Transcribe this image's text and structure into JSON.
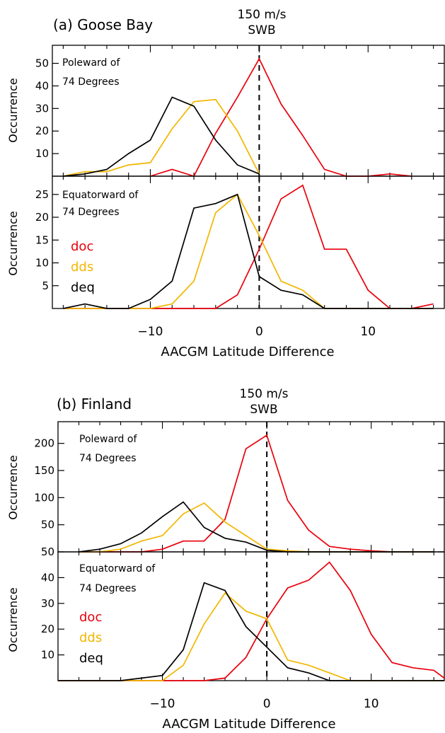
{
  "colors": {
    "doc": "#e8000b",
    "dds": "#f2b600",
    "deq": "#000000",
    "axis": "#000000"
  },
  "chart_data": [
    {
      "type": "line",
      "figure": "a",
      "title": "(a) Goose Bay",
      "header": [
        "150 m/s",
        "SWB"
      ],
      "xlabel": "AACGM Latitude Difference",
      "xticks": [
        "−10",
        "0",
        "10"
      ],
      "xlim": [
        -19,
        17
      ],
      "panels": [
        {
          "note": [
            "Poleward of",
            "74 Degrees"
          ],
          "ylabel": "Occurrence",
          "ylim": [
            0,
            58
          ],
          "yticks": [
            10,
            20,
            30,
            40,
            50
          ],
          "x": [
            -18,
            -16,
            -14,
            -12,
            -10,
            -8,
            -6,
            -4,
            -2,
            0,
            2,
            4,
            6,
            8,
            10,
            12,
            14,
            16
          ],
          "series": [
            {
              "name": "doc",
              "values": [
                null,
                null,
                null,
                null,
                0,
                3,
                0,
                19,
                35,
                52,
                32,
                18,
                3,
                0,
                0,
                1,
                0,
                null
              ]
            },
            {
              "name": "dds",
              "values": [
                0,
                2,
                2,
                5,
                6,
                21,
                33,
                34,
                20,
                1,
                null,
                null,
                null,
                null,
                null,
                null,
                null,
                null
              ]
            },
            {
              "name": "deq",
              "values": [
                0,
                1,
                3,
                10,
                16,
                35,
                31,
                16,
                5,
                1,
                null,
                null,
                null,
                null,
                null,
                null,
                null,
                null
              ]
            }
          ]
        },
        {
          "note": [
            "Equatorward of",
            "74 Degrees"
          ],
          "ylabel": "Occurrence",
          "ylim": [
            0,
            29
          ],
          "yticks": [
            5,
            10,
            15,
            20,
            25
          ],
          "legend": [
            "doc",
            "dds",
            "deq"
          ],
          "x": [
            -18,
            -16,
            -14,
            -12,
            -10,
            -8,
            -6,
            -4,
            -2,
            0,
            2,
            4,
            6,
            8,
            10,
            12,
            14,
            16,
            18
          ],
          "series": [
            {
              "name": "doc",
              "values": [
                0,
                0,
                0,
                0,
                0,
                0,
                0,
                0,
                3,
                13,
                24,
                27,
                13,
                13,
                4,
                0,
                0,
                1,
                0
              ]
            },
            {
              "name": "dds",
              "values": [
                0,
                0,
                0,
                0,
                0,
                1,
                6,
                21,
                25,
                16,
                6,
                4,
                0,
                0,
                0,
                0,
                0,
                0,
                0
              ]
            },
            {
              "name": "deq",
              "values": [
                0,
                1,
                0,
                0,
                2,
                6,
                22,
                23,
                25,
                7,
                4,
                3,
                0,
                0,
                0,
                0,
                0,
                0,
                0
              ]
            }
          ]
        }
      ]
    },
    {
      "type": "line",
      "figure": "b",
      "title": "(b) Finland",
      "header": [
        "150 m/s",
        "SWB"
      ],
      "xlabel": "AACGM Latitude Difference",
      "xticks": [
        "−10",
        "0",
        "10"
      ],
      "xlim": [
        -20,
        17
      ],
      "panels": [
        {
          "note": [
            "Poleward of",
            "74 Degrees"
          ],
          "ylabel": "Occurrence",
          "ylim": [
            0,
            240
          ],
          "yticks": [
            50,
            100,
            150,
            200
          ],
          "x": [
            -18,
            -16,
            -14,
            -12,
            -10,
            -8,
            -6,
            -4,
            -2,
            0,
            2,
            4,
            6,
            8,
            10,
            12,
            14,
            16,
            18
          ],
          "series": [
            {
              "name": "doc",
              "values": [
                0,
                0,
                0,
                0,
                5,
                20,
                20,
                60,
                190,
                215,
                95,
                40,
                10,
                5,
                2,
                0,
                0,
                0,
                0
              ]
            },
            {
              "name": "dds",
              "values": [
                0,
                0,
                5,
                20,
                30,
                70,
                90,
                55,
                30,
                5,
                2,
                0,
                0,
                0,
                0,
                0,
                0,
                0,
                0
              ]
            },
            {
              "name": "deq",
              "values": [
                0,
                5,
                15,
                35,
                65,
                92,
                45,
                25,
                18,
                3,
                0,
                0,
                0,
                0,
                0,
                0,
                0,
                0,
                0
              ]
            }
          ]
        },
        {
          "note": [
            "Equatorward of",
            "74 Degrees"
          ],
          "ylabel": "Occurrence",
          "ylim": [
            0,
            50
          ],
          "yticks": [
            10,
            20,
            30,
            40,
            50
          ],
          "legend": [
            "doc",
            "dds",
            "deq"
          ],
          "x": [
            -20,
            -18,
            -16,
            -14,
            -12,
            -10,
            -8,
            -6,
            -4,
            -2,
            0,
            2,
            4,
            6,
            8,
            10,
            12,
            14,
            16,
            17
          ],
          "series": [
            {
              "name": "doc",
              "values": [
                0,
                0,
                0,
                0,
                0,
                0,
                0,
                0,
                1,
                9,
                24,
                36,
                39,
                46,
                35,
                18,
                7,
                5,
                4,
                1
              ]
            },
            {
              "name": "dds",
              "values": [
                0,
                0,
                0,
                0,
                0,
                0,
                6,
                22,
                34,
                27,
                24,
                8,
                6,
                3,
                0,
                0,
                0,
                0,
                0,
                0
              ]
            },
            {
              "name": "deq",
              "values": [
                0,
                0,
                0,
                0,
                1,
                2,
                12,
                38,
                35,
                21,
                13,
                5,
                3,
                0,
                0,
                0,
                0,
                0,
                0,
                0
              ]
            }
          ]
        }
      ]
    }
  ]
}
